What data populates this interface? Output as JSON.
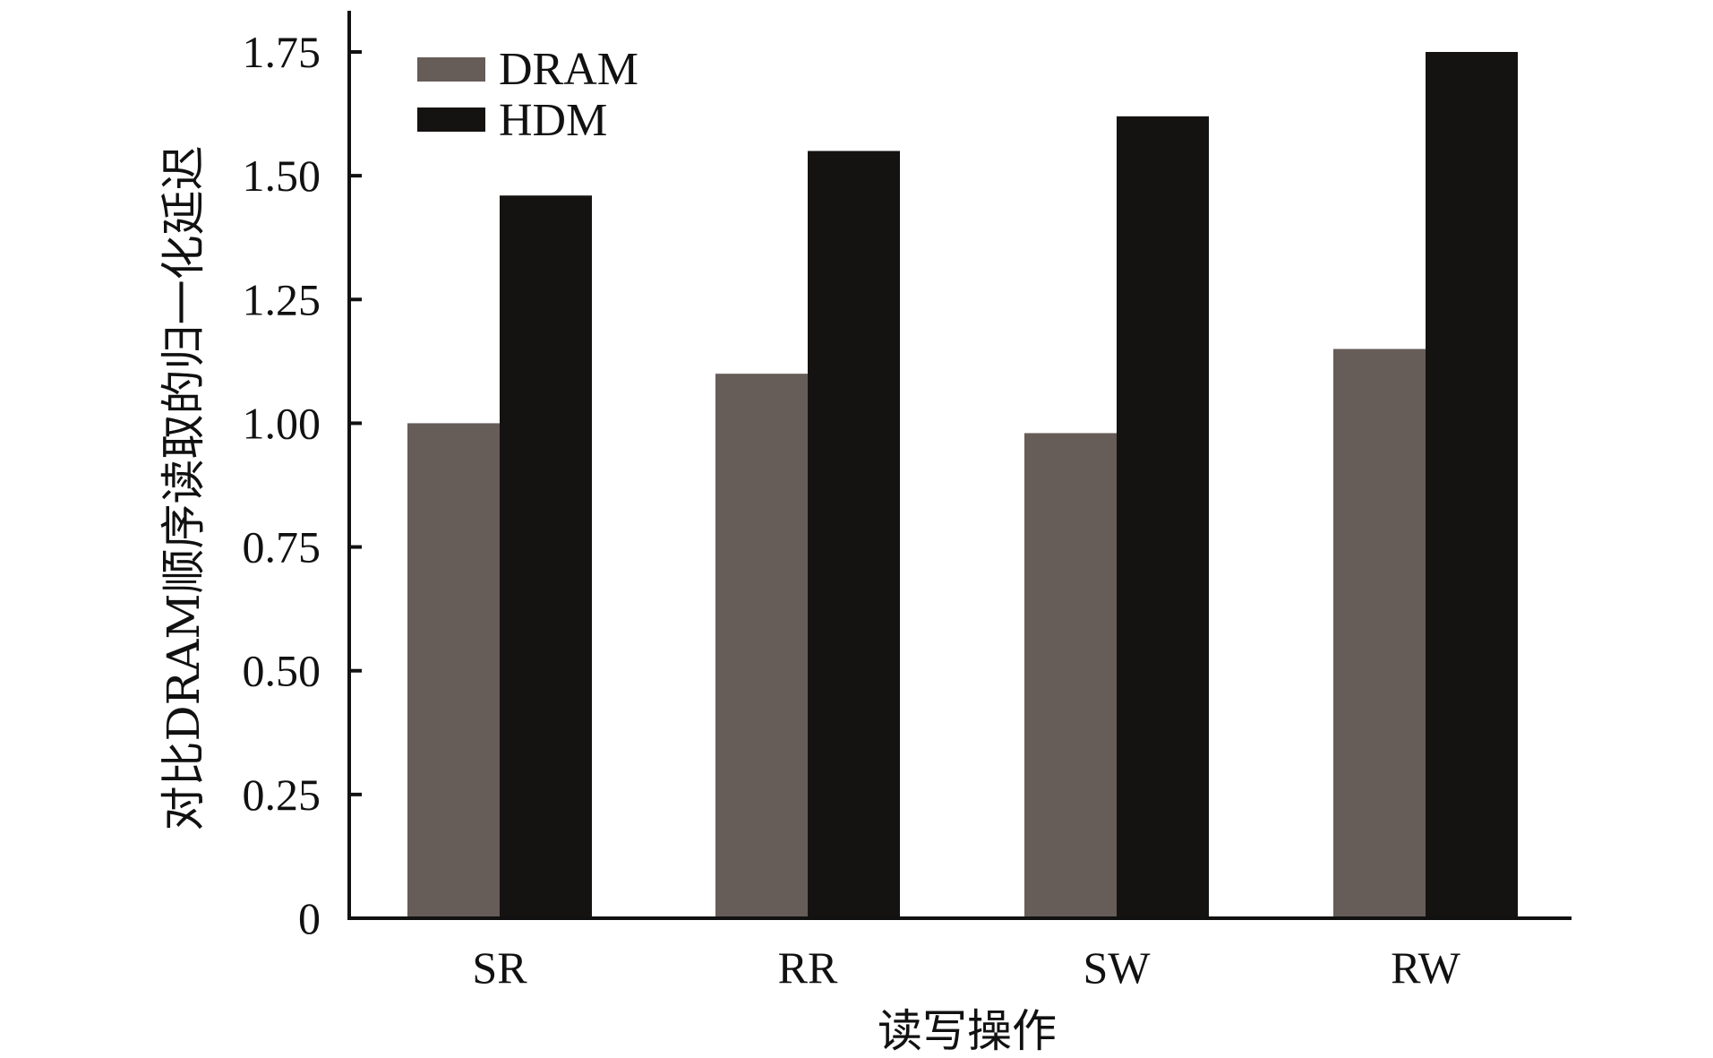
{
  "chart_data": {
    "type": "bar",
    "categories": [
      "SR",
      "RR",
      "SW",
      "RW"
    ],
    "series": [
      {
        "name": "DRAM",
        "values": [
          1.0,
          1.1,
          0.98,
          1.15
        ],
        "color": "#665c58"
      },
      {
        "name": "HDM",
        "values": [
          1.46,
          1.55,
          1.62,
          1.75
        ],
        "color": "#151312"
      }
    ],
    "ylim": [
      0,
      1.75
    ],
    "yticks": [
      0,
      0.25,
      0.5,
      0.75,
      1.0,
      1.25,
      1.5,
      1.75
    ],
    "ytick_labels": [
      "0",
      "0.25",
      "0.50",
      "0.75",
      "1.00",
      "1.25",
      "1.50",
      "1.75"
    ],
    "xlabel": "读写操作",
    "ylabel": "对比DRAM顺序读取的归一化延迟",
    "legend_position": "top-left",
    "grid": false
  }
}
